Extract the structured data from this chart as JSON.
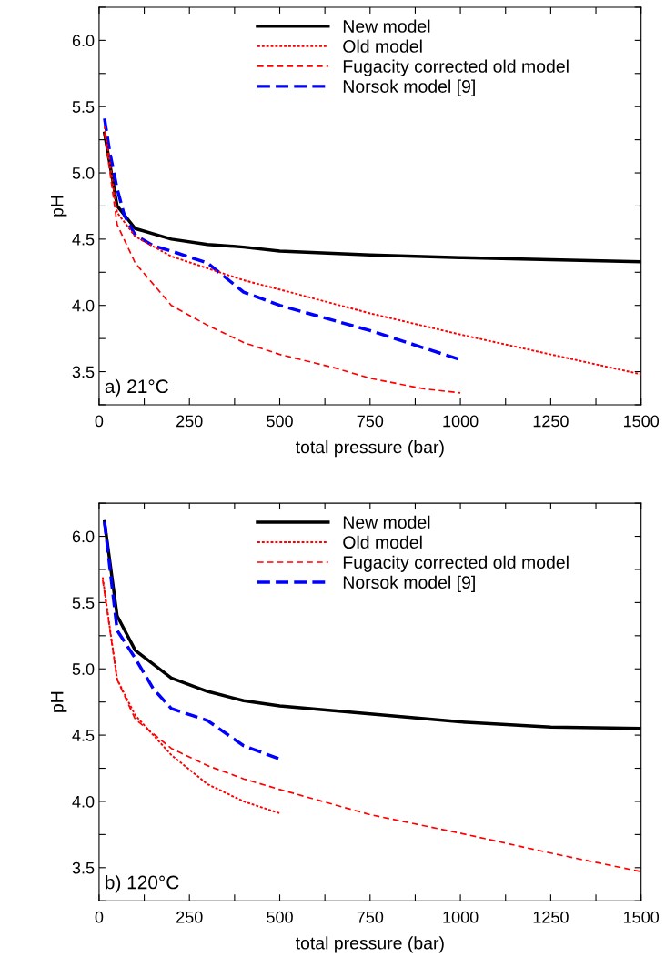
{
  "chart_data": [
    {
      "type": "line",
      "xlabel": "total pressure (bar)",
      "ylabel": "pH",
      "xlim": [
        0,
        1500
      ],
      "ylim": [
        3.25,
        6.25
      ],
      "xticks": [
        0,
        {
          "value": 125,
          "label": null
        },
        250,
        {
          "value": 375,
          "label": null
        },
        500,
        {
          "value": 625,
          "label": null
        },
        750,
        {
          "value": 875,
          "label": null
        },
        1000,
        {
          "value": 1125,
          "label": null
        },
        1250,
        {
          "value": 1375,
          "label": null
        },
        1500
      ],
      "yticks": [
        {
          "value": 3.25,
          "label": null
        },
        3.5,
        {
          "value": 3.75,
          "label": null
        },
        {
          "value": 4,
          "label": "4.0"
        },
        {
          "value": 4.25,
          "label": null
        },
        4.5,
        {
          "value": 4.75,
          "label": null
        },
        {
          "value": 5,
          "label": "5.0"
        },
        {
          "value": 5.25,
          "label": null
        },
        5.5,
        {
          "value": 5.75,
          "label": null
        },
        {
          "value": 6,
          "label": "6.0"
        },
        {
          "value": 6.25,
          "label": null
        }
      ],
      "legend": "top",
      "grid": false,
      "annotations": [
        "a) 21°C"
      ],
      "series": [
        {
          "name": "New model",
          "color": "#000000",
          "line_style": "solid",
          "x": [
            15,
            50,
            100,
            200,
            300,
            400,
            500,
            750,
            1000,
            1250,
            1500
          ],
          "values": [
            5.3,
            4.75,
            4.58,
            4.5,
            4.46,
            4.44,
            4.41,
            4.38,
            4.36,
            4.345,
            4.33
          ]
        },
        {
          "name": "Old model",
          "color": "#ff0000",
          "line_style": "dotted",
          "x": [
            15,
            50,
            100,
            200,
            300,
            400,
            500,
            750,
            1000,
            1250,
            1500
          ],
          "values": [
            5.35,
            4.7,
            4.52,
            4.37,
            4.28,
            4.19,
            4.12,
            3.94,
            3.78,
            3.63,
            3.48
          ]
        },
        {
          "name": "Fugacity corrected old model",
          "color": "#ff0000",
          "line_style": "dashed",
          "x": [
            15,
            50,
            100,
            200,
            300,
            400,
            500,
            650,
            750,
            900,
            1000
          ],
          "values": [
            5.3,
            4.61,
            4.32,
            4.0,
            3.85,
            3.72,
            3.63,
            3.53,
            3.45,
            3.37,
            3.34
          ]
        },
        {
          "name": "Norsok model [9]",
          "color": "#0000ff",
          "line_style": "longdash",
          "x": [
            15,
            30,
            50,
            70,
            100,
            150,
            200,
            300,
            400,
            500,
            750,
            1000
          ],
          "values": [
            5.41,
            5.15,
            4.88,
            4.68,
            4.53,
            4.45,
            4.41,
            4.32,
            4.1,
            4.0,
            3.81,
            3.59
          ]
        }
      ]
    },
    {
      "type": "line",
      "xlabel": "total pressure (bar)",
      "ylabel": "pH",
      "xlim": [
        0,
        1500
      ],
      "ylim": [
        3.25,
        6.25
      ],
      "xticks": [
        0,
        {
          "value": 125,
          "label": null
        },
        250,
        {
          "value": 375,
          "label": null
        },
        500,
        {
          "value": 625,
          "label": null
        },
        750,
        {
          "value": 875,
          "label": null
        },
        1000,
        {
          "value": 1125,
          "label": null
        },
        1250,
        {
          "value": 1375,
          "label": null
        },
        1500
      ],
      "yticks": [
        {
          "value": 3.25,
          "label": null
        },
        3.5,
        {
          "value": 3.75,
          "label": null
        },
        {
          "value": 4,
          "label": "4.0"
        },
        {
          "value": 4.25,
          "label": null
        },
        4.5,
        {
          "value": 4.75,
          "label": null
        },
        {
          "value": 5,
          "label": "5.0"
        },
        {
          "value": 5.25,
          "label": null
        },
        5.5,
        {
          "value": 5.75,
          "label": null
        },
        {
          "value": 6,
          "label": "6.0"
        },
        {
          "value": 6.25,
          "label": null
        }
      ],
      "legend": "top",
      "grid": false,
      "annotations": [
        "b) 120°C"
      ],
      "series": [
        {
          "name": "New model",
          "color": "#000000",
          "line_style": "solid",
          "x": [
            15,
            50,
            100,
            200,
            300,
            400,
            500,
            750,
            1000,
            1250,
            1500
          ],
          "values": [
            6.11,
            5.4,
            5.14,
            4.93,
            4.83,
            4.76,
            4.72,
            4.66,
            4.6,
            4.56,
            4.55
          ]
        },
        {
          "name": "Old model",
          "color": "#ff0000",
          "line_style": "dotted",
          "x": [
            10,
            50,
            100,
            200,
            300,
            400,
            500
          ],
          "values": [
            5.69,
            4.92,
            4.65,
            4.35,
            4.13,
            4.0,
            3.91
          ]
        },
        {
          "name": "Fugacity corrected old model",
          "color": "#ff0000",
          "line_style": "dashed",
          "x": [
            10,
            50,
            100,
            200,
            300,
            400,
            500,
            750,
            1000,
            1250,
            1500
          ],
          "values": [
            5.67,
            4.92,
            4.62,
            4.4,
            4.27,
            4.17,
            4.09,
            3.9,
            3.76,
            3.61,
            3.47
          ]
        },
        {
          "name": "Norsok model [9]",
          "color": "#0000ff",
          "line_style": "longdash",
          "x": [
            15,
            50,
            100,
            150,
            200,
            300,
            400,
            500
          ],
          "values": [
            6.11,
            5.29,
            5.08,
            4.85,
            4.7,
            4.61,
            4.42,
            4.32
          ]
        }
      ]
    }
  ]
}
